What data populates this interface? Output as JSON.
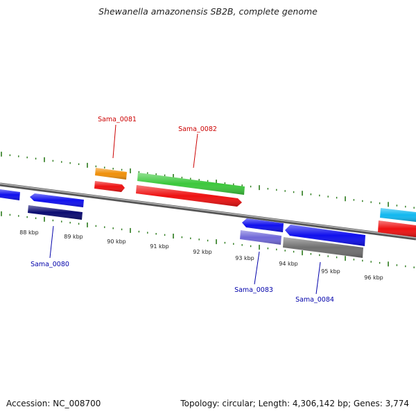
{
  "title": "Shewanella amazonensis SB2B, complete genome",
  "footer": {
    "accession": "Accession: NC_008700",
    "summary": "Topology: circular; Length: 4,306,142 bp; Genes: 3,774"
  },
  "scale_labels": [
    "88 kbp",
    "89 kbp",
    "90 kbp",
    "91 kbp",
    "92 kbp",
    "93 kbp",
    "94 kbp",
    "95 kbp",
    "96 kbp"
  ],
  "gene_labels": {
    "sama_0081": "Sama_0081",
    "sama_0082": "Sama_0082",
    "sama_0080": "Sama_0080",
    "sama_0083": "Sama_0083",
    "sama_0084": "Sama_0084"
  },
  "colors": {
    "forward_label": "#cc0000",
    "reverse_label": "#0000aa",
    "tick": "#2a7a1a",
    "backbone": "#777777",
    "orange": "#f0900a",
    "green": "#3cc83c",
    "red": "#ee1111",
    "blue": "#1010ee",
    "navy": "#0a0a70",
    "lavender": "#7068d8",
    "grey": "#707070",
    "cyan": "#10b8f0"
  }
}
